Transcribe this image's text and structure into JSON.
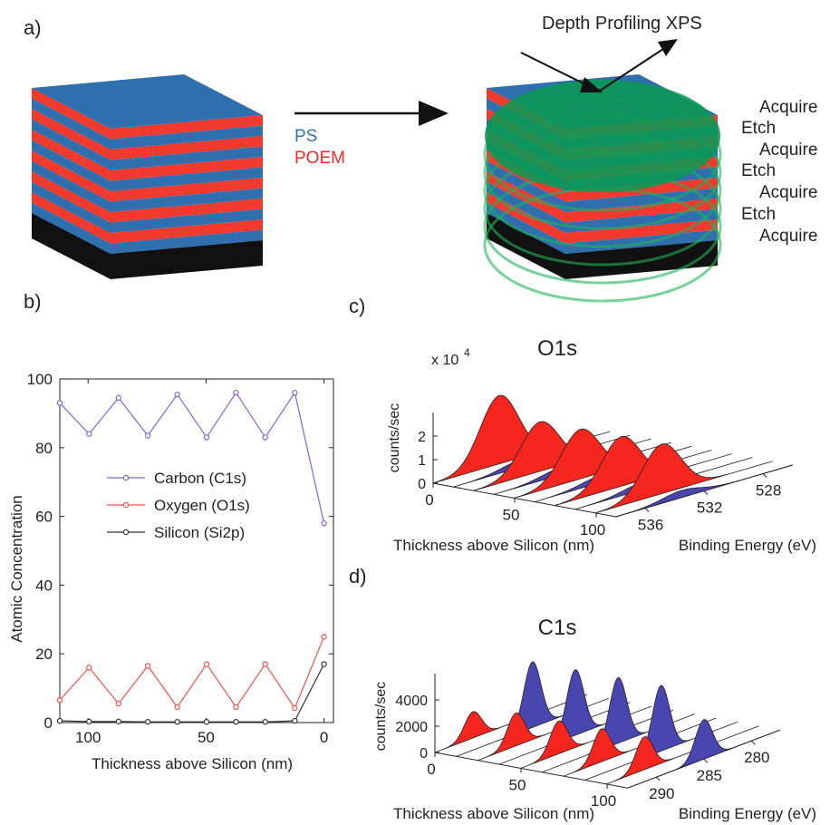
{
  "panels": {
    "a": "a)",
    "b": "b)",
    "c": "c)",
    "d": "d)"
  },
  "diagram": {
    "layers": [
      "PS",
      "POEM"
    ],
    "method": "Depth Profiling XPS",
    "steps": [
      "Acquire",
      "Etch",
      "Acquire",
      "Etch",
      "Acquire",
      "Etch",
      "Acquire"
    ]
  },
  "chart_data": [
    {
      "type": "line",
      "ylabel": "Atomic Concentration",
      "xlabel": "Thickness above Silicon (nm)",
      "x": [
        112,
        99.6,
        87.1,
        74.7,
        62.2,
        49.8,
        37.3,
        24.9,
        12.4,
        0
      ],
      "series": [
        {
          "name": "Carbon (C1s)",
          "color": "#7768d8",
          "values": [
            93,
            84,
            94.5,
            83.5,
            95.5,
            83,
            96,
            83,
            96,
            58
          ]
        },
        {
          "name": "Oxygen (O1s)",
          "color": "#f0524a",
          "values": [
            6.5,
            16,
            5.5,
            16.5,
            4.5,
            17,
            4.5,
            17,
            4.2,
            25
          ]
        },
        {
          "name": "Silicon (Si2p)",
          "color": "#333333",
          "values": [
            0.5,
            0.3,
            0.3,
            0.2,
            0.2,
            0.2,
            0.2,
            0.2,
            0.5,
            17
          ]
        }
      ],
      "xlim": [
        112,
        -4
      ],
      "ylim": [
        0,
        100
      ],
      "xticks": [
        0,
        50,
        100
      ],
      "yticks": [
        0,
        20,
        40,
        60,
        80,
        100
      ]
    },
    {
      "type": "waterfall",
      "title": "O1s",
      "y_multiplier": {
        "base": "x 10",
        "exponent": "4"
      },
      "ylabel": "counts/sec",
      "xlabel": "Thickness above Silicon (nm)",
      "zlabel": "Binding Energy (eV)",
      "x": [
        0,
        12.4,
        24.9,
        37.3,
        49.8,
        62.2,
        74.7,
        87.1,
        99.6,
        112
      ],
      "series": [
        {
          "color": "#f5261e",
          "peak_energy": 533.5,
          "values": [
            2.9,
            null,
            2.1,
            null,
            2.1,
            null,
            2.1,
            null,
            2.1,
            null
          ]
        },
        {
          "color": "#4a46b0",
          "peak_energy": 533.5,
          "values": [
            null,
            0.3,
            null,
            0.3,
            null,
            0.3,
            null,
            0.3,
            null,
            0.3
          ]
        }
      ],
      "xlim": [
        0,
        112
      ],
      "ylim": [
        0,
        3
      ],
      "zlim": [
        538,
        526
      ],
      "xticks": [
        0,
        50,
        100
      ],
      "yticks": [
        0,
        1,
        2
      ],
      "zticks": [
        536,
        532,
        528
      ]
    },
    {
      "type": "waterfall",
      "title": "C1s",
      "ylabel": "counts/sec",
      "xlabel": "Thickness above Silicon (nm)",
      "zlabel": "Binding Energy (eV)",
      "x": [
        0,
        12.4,
        24.9,
        37.3,
        49.8,
        62.2,
        74.7,
        87.1,
        99.6,
        112
      ],
      "series": [
        {
          "color": "#f5261e",
          "peak_energy": 289,
          "values": [
            2000,
            null,
            2500,
            null,
            2500,
            null,
            2500,
            null,
            2500,
            null
          ]
        },
        {
          "color": "#4a46b0",
          "peak_energy": 285,
          "values": [
            null,
            5000,
            null,
            5000,
            null,
            5000,
            null,
            5000,
            null,
            3000
          ]
        }
      ],
      "xlim": [
        0,
        112
      ],
      "ylim": [
        0,
        6000
      ],
      "zlim": [
        293,
        277
      ],
      "xticks": [
        0,
        50,
        100
      ],
      "yticks": [
        0,
        2000,
        4000
      ],
      "zticks": [
        290,
        285,
        280
      ]
    }
  ]
}
